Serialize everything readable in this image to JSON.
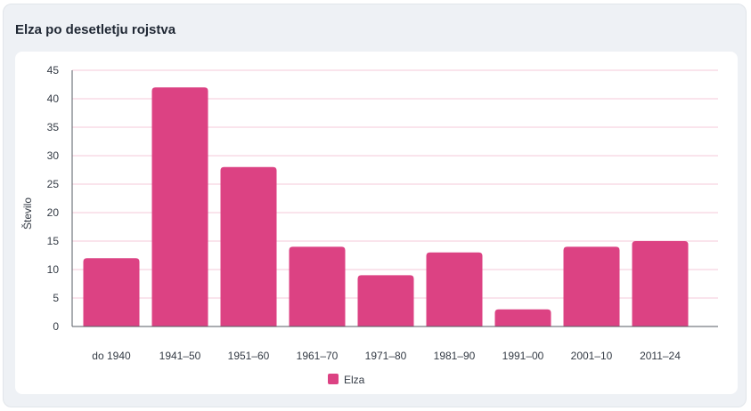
{
  "card": {
    "title": "Elza po desetletju rojstva"
  },
  "colors": {
    "bar": "#dc4283",
    "grid": "#f6c9da",
    "axis": "#555b63"
  },
  "chart_data": {
    "type": "bar",
    "title": "",
    "xlabel": "",
    "ylabel": "Število",
    "ylim": [
      0,
      45
    ],
    "yticks": [
      0,
      5,
      10,
      15,
      20,
      25,
      30,
      35,
      40,
      45
    ],
    "categories": [
      "do 1940",
      "1941–50",
      "1951–60",
      "1961–70",
      "1971–80",
      "1981–90",
      "1991–00",
      "2001–10",
      "2011–24"
    ],
    "series": [
      {
        "name": "Elza",
        "values": [
          12,
          42,
          28,
          14,
          9,
          13,
          3,
          14,
          15
        ]
      }
    ],
    "grid": true,
    "legend": "bottom"
  }
}
